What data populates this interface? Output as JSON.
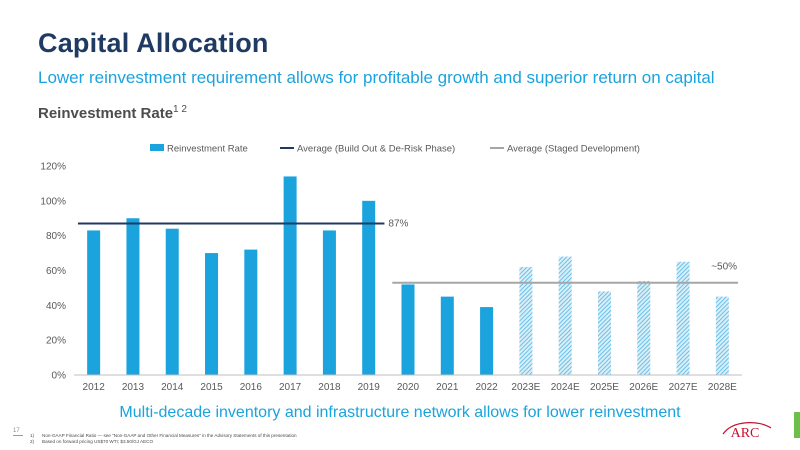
{
  "title": "Capital Allocation",
  "subtitle": "Lower reinvestment requirement allows for profitable growth and superior return on capital",
  "chart_heading": "Reinvestment Rate",
  "chart_heading_superscript": "1 2",
  "bottom_note": "Multi-decade inventory and infrastructure network allows for lower reinvestment",
  "page_number": "17",
  "footnotes": [
    {
      "num": "1)",
      "text": "Non-GAAP Financial Ratio — see \"Non-GAAP and Other Financial Measures\" in the Advisory Statements of this presentation"
    },
    {
      "num": "2)",
      "text": "Based on forward pricing US$70 WTI; $3.50/GJ AECO"
    }
  ],
  "logo_text": "ARC",
  "chart_data": {
    "type": "bar",
    "categories": [
      "2012",
      "2013",
      "2014",
      "2015",
      "2016",
      "2017",
      "2018",
      "2019",
      "2020",
      "2021",
      "2022",
      "2023E",
      "2024E",
      "2025E",
      "2026E",
      "2027E",
      "2028E"
    ],
    "values": [
      83,
      90,
      84,
      70,
      72,
      114,
      83,
      100,
      52,
      45,
      39,
      62,
      68,
      48,
      54,
      65,
      45
    ],
    "projected": [
      false,
      false,
      false,
      false,
      false,
      false,
      false,
      false,
      false,
      false,
      false,
      true,
      true,
      true,
      true,
      true,
      true
    ],
    "ylim": [
      0,
      120
    ],
    "yticks": [
      0,
      20,
      40,
      60,
      80,
      100,
      120
    ],
    "ytick_labels": [
      "0%",
      "20%",
      "40%",
      "60%",
      "80%",
      "100%",
      "120%"
    ],
    "grid": false,
    "legend_position": "top",
    "series": [
      {
        "name": "Reinvestment Rate",
        "kind": "bar",
        "color": "#1aa3dd"
      },
      {
        "name": "Average (Build Out & De-Risk Phase)",
        "kind": "line",
        "color": "#1f3a63",
        "value": 87,
        "from": "2012",
        "to": "2019",
        "label": "87%"
      },
      {
        "name": "Average (Staged Development)",
        "kind": "line",
        "color": "#a6a6a6",
        "value": 53,
        "from": "2020",
        "to": "2028E",
        "label": "~50%"
      }
    ]
  },
  "logo_colors": {
    "text": "#c8102e"
  }
}
